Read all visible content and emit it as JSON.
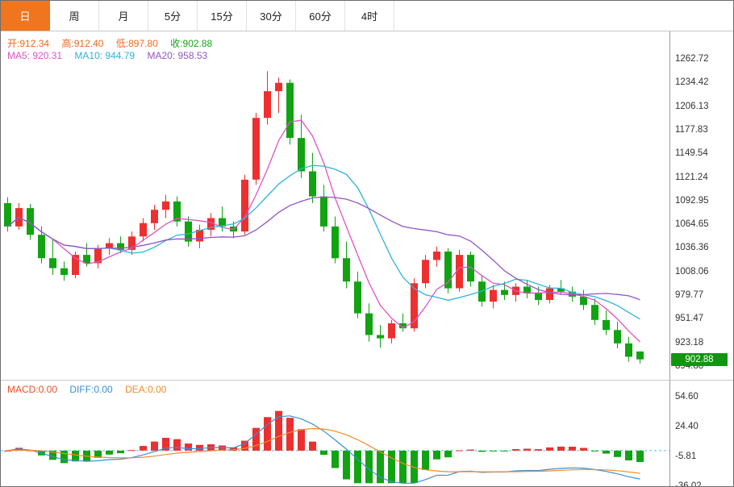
{
  "tabs": {
    "items": [
      {
        "label": "日",
        "selected": true
      },
      {
        "label": "周",
        "selected": false
      },
      {
        "label": "月",
        "selected": false
      },
      {
        "label": "5分",
        "selected": false
      },
      {
        "label": "15分",
        "selected": false
      },
      {
        "label": "30分",
        "selected": false
      },
      {
        "label": "60分",
        "selected": false
      },
      {
        "label": "4时",
        "selected": false
      }
    ]
  },
  "ohlc_bar": {
    "open_label": "开:",
    "open": "912.34",
    "high_label": "高:",
    "high": "912.40",
    "low_label": "低:",
    "low": "897.80",
    "close_label": "收:",
    "close": "902.88"
  },
  "ma_bar": {
    "ma5_label": "MA5: ",
    "ma5": "920.31",
    "ma10_label": "MA10: ",
    "ma10": "944.79",
    "ma20_label": "MA20: ",
    "ma20": "958.53"
  },
  "macd_bar": {
    "macd_label": "MACD:",
    "macd": "0.00",
    "diff_label": "DIFF:",
    "diff": "0.00",
    "dea_label": "DEA:",
    "dea": "0.00"
  },
  "price_axis": {
    "last_price": "902.88"
  },
  "colors": {
    "up": "#ee2f2f",
    "down": "#12a312",
    "ma5": "#e052c8",
    "ma10": "#2fb2dc",
    "ma20": "#9355c4",
    "diff": "#3a8fd4",
    "dea": "#f08c2a",
    "zero_line": "#49c4e4",
    "axis_line": "#999999",
    "tick_text": "#333333",
    "accent_tab": "#f0751f",
    "badge_bg": "#129612",
    "text_orange": "#f2681e",
    "text_green": "#17a317",
    "macd_label": "#f25022"
  },
  "chart_data": {
    "type": "candlestick",
    "panels": [
      "price_with_ma",
      "macd"
    ],
    "ma_periods": [
      5,
      10,
      20
    ],
    "ohlc_displayed": {
      "open": 912.34,
      "high": 912.4,
      "low": 897.8,
      "close": 902.88
    },
    "ma_values_displayed": {
      "MA5": 920.31,
      "MA10": 944.79,
      "MA20": 958.53
    },
    "macd_values_displayed": {
      "MACD": 0.0,
      "DIFF": 0.0,
      "DEA": 0.0
    },
    "last_price": 902.88,
    "price_axis_ticks": [
      "1262.72",
      "1234.42",
      "1206.13",
      "1177.83",
      "1149.54",
      "1121.24",
      "1092.95",
      "1064.65",
      "1036.36",
      "1008.06",
      "979.77",
      "951.47",
      "923.18",
      "894.88"
    ],
    "macd_axis_ticks": [
      "54.60",
      "24.40",
      "-5.81",
      "-36.02"
    ],
    "candles_note": "values estimated from pixels, [open,high,low,close] per bar, left to right",
    "candles": [
      [
        1090,
        1097,
        1056,
        1062
      ],
      [
        1062,
        1090,
        1058,
        1084
      ],
      [
        1084,
        1089,
        1046,
        1052
      ],
      [
        1052,
        1062,
        1018,
        1024
      ],
      [
        1024,
        1046,
        1004,
        1012
      ],
      [
        1012,
        1020,
        997,
        1004
      ],
      [
        1004,
        1032,
        1000,
        1028
      ],
      [
        1028,
        1042,
        1014,
        1018
      ],
      [
        1018,
        1040,
        1012,
        1036
      ],
      [
        1036,
        1048,
        1028,
        1042
      ],
      [
        1042,
        1050,
        1030,
        1034
      ],
      [
        1034,
        1056,
        1028,
        1050
      ],
      [
        1050,
        1072,
        1044,
        1066
      ],
      [
        1066,
        1088,
        1058,
        1082
      ],
      [
        1082,
        1100,
        1072,
        1092
      ],
      [
        1092,
        1098,
        1062,
        1068
      ],
      [
        1068,
        1074,
        1038,
        1044
      ],
      [
        1044,
        1064,
        1036,
        1058
      ],
      [
        1058,
        1078,
        1050,
        1072
      ],
      [
        1072,
        1086,
        1056,
        1062
      ],
      [
        1062,
        1068,
        1048,
        1056
      ],
      [
        1056,
        1124,
        1052,
        1118
      ],
      [
        1118,
        1198,
        1112,
        1192
      ],
      [
        1192,
        1248,
        1184,
        1224
      ],
      [
        1224,
        1240,
        1198,
        1234
      ],
      [
        1234,
        1238,
        1160,
        1168
      ],
      [
        1168,
        1196,
        1120,
        1128
      ],
      [
        1128,
        1150,
        1090,
        1098
      ],
      [
        1098,
        1112,
        1056,
        1062
      ],
      [
        1062,
        1074,
        1018,
        1024
      ],
      [
        1024,
        1044,
        988,
        996
      ],
      [
        996,
        1008,
        952,
        958
      ],
      [
        958,
        970,
        924,
        932
      ],
      [
        932,
        944,
        917,
        928
      ],
      [
        928,
        950,
        922,
        946
      ],
      [
        946,
        958,
        936,
        940
      ],
      [
        940,
        1000,
        936,
        994
      ],
      [
        994,
        1028,
        988,
        1022
      ],
      [
        1022,
        1038,
        1014,
        1032
      ],
      [
        1032,
        1036,
        982,
        988
      ],
      [
        988,
        1034,
        984,
        1028
      ],
      [
        1028,
        1032,
        990,
        996
      ],
      [
        996,
        1004,
        966,
        972
      ],
      [
        972,
        992,
        964,
        986
      ],
      [
        986,
        996,
        974,
        980
      ],
      [
        980,
        994,
        972,
        990
      ],
      [
        990,
        998,
        976,
        982
      ],
      [
        982,
        990,
        968,
        974
      ],
      [
        974,
        992,
        970,
        988
      ],
      [
        988,
        998,
        980,
        984
      ],
      [
        984,
        990,
        972,
        978
      ],
      [
        978,
        986,
        962,
        968
      ],
      [
        968,
        976,
        944,
        950
      ],
      [
        950,
        962,
        932,
        938
      ],
      [
        938,
        948,
        916,
        922
      ],
      [
        922,
        930,
        900,
        906
      ],
      [
        912.34,
        912.4,
        897.8,
        902.88
      ]
    ]
  }
}
